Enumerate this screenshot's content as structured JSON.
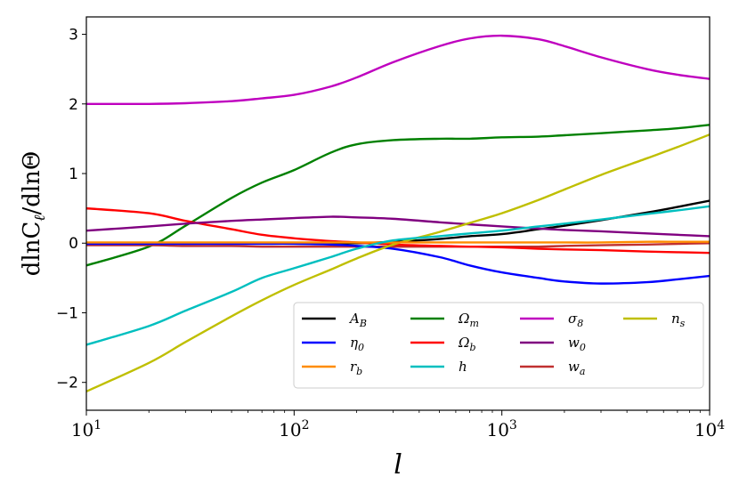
{
  "chart_data": {
    "type": "line",
    "title": "",
    "xlabel": "l",
    "ylabel": "dlnC_ℓ/dlnΘ",
    "xscale": "log",
    "xlim": [
      10,
      10000
    ],
    "ylim": [
      -2.4,
      3.25
    ],
    "grid": false,
    "legend_position": "lower-right",
    "legend_columns": 4,
    "x_ticks": [
      {
        "value": 10,
        "base": "10",
        "exp": "1"
      },
      {
        "value": 100,
        "base": "10",
        "exp": "2"
      },
      {
        "value": 1000,
        "base": "10",
        "exp": "3"
      },
      {
        "value": 10000,
        "base": "10",
        "exp": "4"
      }
    ],
    "y_ticks": [
      {
        "value": 3,
        "label": "3"
      },
      {
        "value": 2,
        "label": "2"
      },
      {
        "value": 1,
        "label": "1"
      },
      {
        "value": 0,
        "label": "0"
      },
      {
        "value": -1,
        "label": "−1"
      },
      {
        "value": -2,
        "label": "−2"
      }
    ],
    "x": [
      10,
      20,
      30,
      50,
      70,
      100,
      150,
      200,
      300,
      500,
      700,
      1000,
      1500,
      2000,
      3000,
      5000,
      7000,
      10000
    ],
    "series": [
      {
        "name": "A_B",
        "sym": "A",
        "sub": "B",
        "color": "#000000",
        "values": [
          0,
          0,
          0,
          0,
          0,
          0,
          0,
          0,
          0.02,
          0.06,
          0.1,
          0.13,
          0.2,
          0.25,
          0.33,
          0.44,
          0.52,
          0.61
        ]
      },
      {
        "name": "Omega_m",
        "sym": "Ω",
        "sub": "m",
        "color": "#008000",
        "values": [
          -0.32,
          -0.05,
          0.25,
          0.65,
          0.87,
          1.05,
          1.3,
          1.42,
          1.48,
          1.5,
          1.5,
          1.52,
          1.53,
          1.55,
          1.58,
          1.62,
          1.65,
          1.7
        ]
      },
      {
        "name": "sigma_8",
        "sym": "σ",
        "sub": "8",
        "color": "#bf00bf",
        "values": [
          2.0,
          2.0,
          2.01,
          2.04,
          2.08,
          2.13,
          2.25,
          2.38,
          2.6,
          2.83,
          2.94,
          2.98,
          2.93,
          2.83,
          2.67,
          2.5,
          2.42,
          2.36
        ]
      },
      {
        "name": "w_a",
        "sym": "w",
        "sub": "a",
        "color": "#c03030",
        "values": [
          -0.03,
          -0.03,
          -0.04,
          -0.04,
          -0.05,
          -0.05,
          -0.05,
          -0.05,
          -0.05,
          -0.05,
          -0.05,
          -0.05,
          -0.05,
          -0.04,
          -0.03,
          -0.02,
          -0.01,
          0
        ]
      },
      {
        "name": "eta_0",
        "sym": "η",
        "sub": "0",
        "color": "#0000ff",
        "values": [
          -0.01,
          -0.01,
          -0.01,
          -0.01,
          -0.01,
          -0.01,
          -0.02,
          -0.04,
          -0.08,
          -0.2,
          -0.32,
          -0.42,
          -0.5,
          -0.55,
          -0.58,
          -0.56,
          -0.52,
          -0.47
        ]
      },
      {
        "name": "Omega_b",
        "sym": "Ω",
        "sub": "b",
        "color": "#ff0000",
        "values": [
          0.5,
          0.43,
          0.32,
          0.2,
          0.12,
          0.07,
          0.03,
          0.01,
          -0.02,
          -0.04,
          -0.05,
          -0.06,
          -0.08,
          -0.09,
          -0.1,
          -0.12,
          -0.13,
          -0.14
        ]
      },
      {
        "name": "w_0",
        "sym": "w",
        "sub": "0",
        "color": "#800080",
        "values": [
          0.18,
          0.24,
          0.28,
          0.32,
          0.34,
          0.36,
          0.38,
          0.37,
          0.35,
          0.3,
          0.27,
          0.24,
          0.21,
          0.19,
          0.17,
          0.14,
          0.12,
          0.1
        ]
      },
      {
        "name": "n_s",
        "sym": "n",
        "sub": "s",
        "color": "#bfbf00",
        "values": [
          -2.13,
          -1.72,
          -1.42,
          -1.05,
          -0.82,
          -0.6,
          -0.38,
          -0.22,
          -0.02,
          0.16,
          0.29,
          0.43,
          0.62,
          0.77,
          0.98,
          1.22,
          1.38,
          1.56
        ]
      },
      {
        "name": "r_b",
        "sym": "r",
        "sub": "b",
        "color": "#ff8c00",
        "values": [
          0.01,
          0.01,
          0.01,
          0.01,
          0.01,
          0.01,
          0.01,
          0.01,
          0.01,
          0.01,
          0.01,
          0.01,
          0.01,
          0.01,
          0.01,
          0.02,
          0.02,
          0.02
        ]
      },
      {
        "name": "h",
        "sym": "h",
        "sub": "",
        "color": "#00bfbf",
        "values": [
          -1.46,
          -1.19,
          -0.97,
          -0.7,
          -0.5,
          -0.36,
          -0.2,
          -0.08,
          0.04,
          0.1,
          0.14,
          0.18,
          0.24,
          0.28,
          0.34,
          0.42,
          0.47,
          0.53
        ]
      }
    ],
    "legend_order": [
      "A_B",
      "eta_0",
      "r_b",
      "Omega_m",
      "Omega_b",
      "h",
      "sigma_8",
      "w_0",
      "w_a",
      "n_s"
    ]
  }
}
